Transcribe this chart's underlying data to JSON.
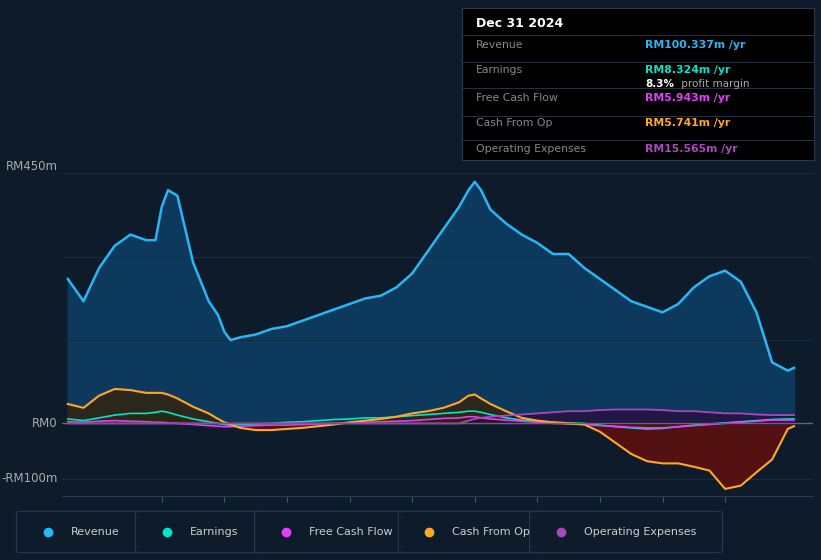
{
  "bg_color": "#0d1b2a",
  "plot_bg_color": "#0d1b2a",
  "grid_color": "#1a2d42",
  "revenue_color": "#29b6f6",
  "revenue_fill_color": "#0d3a5c",
  "earnings_color": "#00e5cc",
  "earnings_fill_color": "#003d35",
  "fcf_color": "#e040fb",
  "fcf_fill_color": "#3a0a40",
  "cashfromop_color": "#ffa726",
  "cashfromop_fill_neg": "#5c1010",
  "opex_color": "#ab47bc",
  "opex_fill_color": "#2a0a3a",
  "ylim": [
    -130,
    475
  ],
  "xlim_start": 2013.4,
  "xlim_end": 2025.4,
  "xticks": [
    2015,
    2016,
    2017,
    2018,
    2019,
    2020,
    2021,
    2022,
    2023,
    2024
  ],
  "x": [
    2013.5,
    2013.75,
    2014.0,
    2014.25,
    2014.5,
    2014.75,
    2014.9,
    2015.0,
    2015.1,
    2015.25,
    2015.5,
    2015.75,
    2015.9,
    2016.0,
    2016.1,
    2016.25,
    2016.5,
    2016.75,
    2017.0,
    2017.25,
    2017.5,
    2017.75,
    2018.0,
    2018.25,
    2018.5,
    2018.75,
    2019.0,
    2019.25,
    2019.5,
    2019.75,
    2019.9,
    2020.0,
    2020.1,
    2020.25,
    2020.5,
    2020.75,
    2021.0,
    2021.25,
    2021.5,
    2021.75,
    2022.0,
    2022.25,
    2022.5,
    2022.75,
    2023.0,
    2023.25,
    2023.5,
    2023.75,
    2024.0,
    2024.25,
    2024.5,
    2024.75,
    2025.0,
    2025.1
  ],
  "revenue": [
    260,
    220,
    280,
    320,
    340,
    330,
    330,
    390,
    420,
    410,
    290,
    220,
    195,
    165,
    150,
    155,
    160,
    170,
    175,
    185,
    195,
    205,
    215,
    225,
    230,
    245,
    270,
    310,
    350,
    390,
    420,
    435,
    420,
    385,
    360,
    340,
    325,
    305,
    305,
    280,
    260,
    240,
    220,
    210,
    200,
    215,
    245,
    265,
    275,
    255,
    200,
    110,
    95,
    100
  ],
  "earnings": [
    8,
    5,
    10,
    15,
    18,
    18,
    20,
    22,
    20,
    15,
    8,
    3,
    0,
    -2,
    -3,
    -2,
    -1,
    0,
    2,
    3,
    5,
    7,
    8,
    10,
    10,
    12,
    14,
    16,
    18,
    20,
    22,
    22,
    20,
    16,
    10,
    6,
    4,
    2,
    1,
    0,
    -3,
    -6,
    -8,
    -10,
    -9,
    -6,
    -3,
    -1,
    1,
    3,
    5,
    7,
    8,
    8
  ],
  "fcf": [
    3,
    2,
    4,
    5,
    4,
    3,
    2,
    2,
    1,
    0,
    -2,
    -4,
    -5,
    -6,
    -6,
    -5,
    -4,
    -3,
    -3,
    -2,
    -1,
    0,
    1,
    2,
    3,
    4,
    5,
    7,
    9,
    10,
    12,
    12,
    10,
    8,
    6,
    4,
    2,
    0,
    -1,
    -2,
    -4,
    -5,
    -7,
    -8,
    -8,
    -6,
    -4,
    -2,
    0,
    2,
    4,
    6,
    6,
    6
  ],
  "cashfromop": [
    35,
    28,
    50,
    62,
    60,
    55,
    55,
    55,
    52,
    45,
    30,
    18,
    8,
    2,
    -2,
    -8,
    -12,
    -12,
    -10,
    -8,
    -5,
    -2,
    2,
    5,
    8,
    12,
    18,
    22,
    28,
    38,
    50,
    52,
    45,
    35,
    22,
    10,
    5,
    2,
    0,
    -2,
    -15,
    -35,
    -55,
    -68,
    -72,
    -72,
    -78,
    -85,
    -118,
    -112,
    -88,
    -65,
    -10,
    -5
  ],
  "opex": [
    0,
    0,
    0,
    0,
    0,
    0,
    0,
    0,
    0,
    0,
    0,
    0,
    0,
    0,
    0,
    0,
    0,
    0,
    0,
    0,
    0,
    0,
    0,
    0,
    0,
    0,
    0,
    0,
    0,
    0,
    5,
    8,
    10,
    12,
    14,
    16,
    18,
    20,
    22,
    22,
    24,
    25,
    25,
    25,
    24,
    22,
    22,
    20,
    18,
    18,
    16,
    15,
    15,
    15
  ]
}
